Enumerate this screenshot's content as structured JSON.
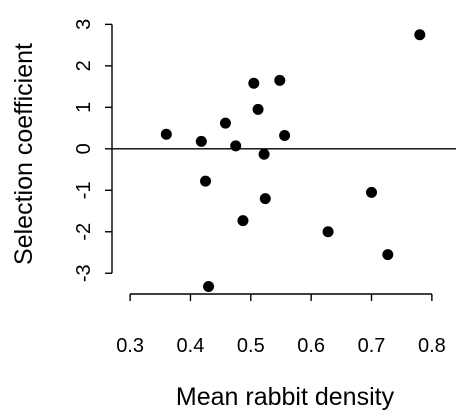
{
  "chart_data": {
    "type": "scatter",
    "xlabel": "Mean rabbit density",
    "ylabel": "Selection coefficient",
    "xlim": [
      0.27,
      0.84
    ],
    "ylim": [
      -3.5,
      3.25
    ],
    "x_ticks": [
      0.3,
      0.4,
      0.5,
      0.6,
      0.7,
      0.8
    ],
    "x_tick_labels": [
      "0.3",
      "0.4",
      "0.5",
      "0.6",
      "0.7",
      "0.8"
    ],
    "y_ticks": [
      -3,
      -2,
      -1,
      0,
      1,
      2,
      3
    ],
    "y_tick_labels": [
      "-3",
      "-2",
      "-1",
      "0",
      "1",
      "2",
      "3"
    ],
    "reference_line_y": 0,
    "grid": false,
    "box": "left-and-bottom axes only",
    "colors": {
      "points": "#000000",
      "axes": "#000000",
      "background": "#ffffff"
    },
    "points": [
      {
        "x": 0.36,
        "y": 0.35
      },
      {
        "x": 0.418,
        "y": 0.18
      },
      {
        "x": 0.425,
        "y": -0.78
      },
      {
        "x": 0.43,
        "y": -3.32
      },
      {
        "x": 0.458,
        "y": 0.62
      },
      {
        "x": 0.475,
        "y": 0.07
      },
      {
        "x": 0.487,
        "y": -1.73
      },
      {
        "x": 0.505,
        "y": 1.58
      },
      {
        "x": 0.512,
        "y": 0.95
      },
      {
        "x": 0.522,
        "y": -0.13
      },
      {
        "x": 0.524,
        "y": -1.2
      },
      {
        "x": 0.548,
        "y": 1.65
      },
      {
        "x": 0.556,
        "y": 0.32
      },
      {
        "x": 0.628,
        "y": -2.0
      },
      {
        "x": 0.7,
        "y": -1.05
      },
      {
        "x": 0.727,
        "y": -2.55
      },
      {
        "x": 0.78,
        "y": 2.75
      }
    ]
  }
}
